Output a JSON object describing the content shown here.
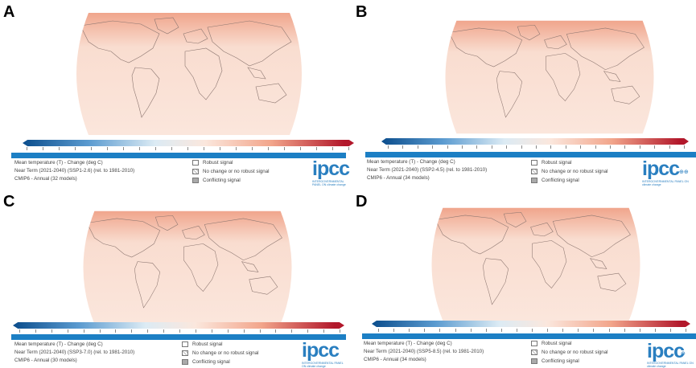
{
  "colors": {
    "map_base": "#f9ddd0",
    "map_warm": "#f0a58c",
    "ocean_frame": "#ffffff",
    "accent_blue": "#1c7fc4",
    "bar_dark_blue": "#0b4d8c",
    "bar_dark_red": "#b2182b"
  },
  "panels": [
    {
      "letter": "A",
      "info_line1": "Mean temperature (T) - Change (deg C)",
      "info_line2": "Near Term (2021-2040) (SSP1-2.6) (rel. to 1981-2010)",
      "info_line3": "CMIP6 - Annual (32 models)",
      "legend_robust": "Robust signal",
      "legend_nochange": "No change or no robust signal",
      "legend_conflict": "Conflicting signal",
      "logo": "ipcc",
      "logo_sub1": "INTERGOVERNMENTAL PANEL ON",
      "logo_sub2": "climate change"
    },
    {
      "letter": "B",
      "info_line1": "Mean temperature (T) - Change (deg C)",
      "info_line2": "Near Term (2021-2040) (SSP2-4.5) (rel. to 1981-2010)",
      "info_line3": "CMIP6 - Annual (34 models)",
      "legend_robust": "Robust signal",
      "legend_nochange": "No change or no robust signal",
      "legend_conflict": "Conflicting signal",
      "logo": "ipcc",
      "logo_sub1": "INTERGOVERNMENTAL PANEL ON",
      "logo_sub2": "climate change"
    },
    {
      "letter": "C",
      "info_line1": "Mean temperature (T) - Change (deg C)",
      "info_line2": "Near Term (2021-2040) (SSP3-7.0) (rel. to 1981-2010)",
      "info_line3": "CMIP6 - Annual (30 models)",
      "legend_robust": "Robust signal",
      "legend_nochange": "No change or no robust signal",
      "legend_conflict": "Conflicting signal",
      "logo": "ipcc",
      "logo_sub1": "INTERGOVERNMENTAL PANEL ON",
      "logo_sub2": "climate change"
    },
    {
      "letter": "D",
      "info_line1": "Mean temperature (T) - Change (deg C)",
      "info_line2": "Near Term (2021-2040) (SSP5-8.5) (rel. to 1981-2010)",
      "info_line3": "CMIP6 - Annual (34 models)",
      "legend_robust": "Robust signal",
      "legend_nochange": "No change or no robust signal",
      "legend_conflict": "Conflicting signal",
      "logo": "ipcc",
      "logo_sub1": "INTERGOVERNMENTAL PANEL ON",
      "logo_sub2": "climate change"
    }
  ]
}
